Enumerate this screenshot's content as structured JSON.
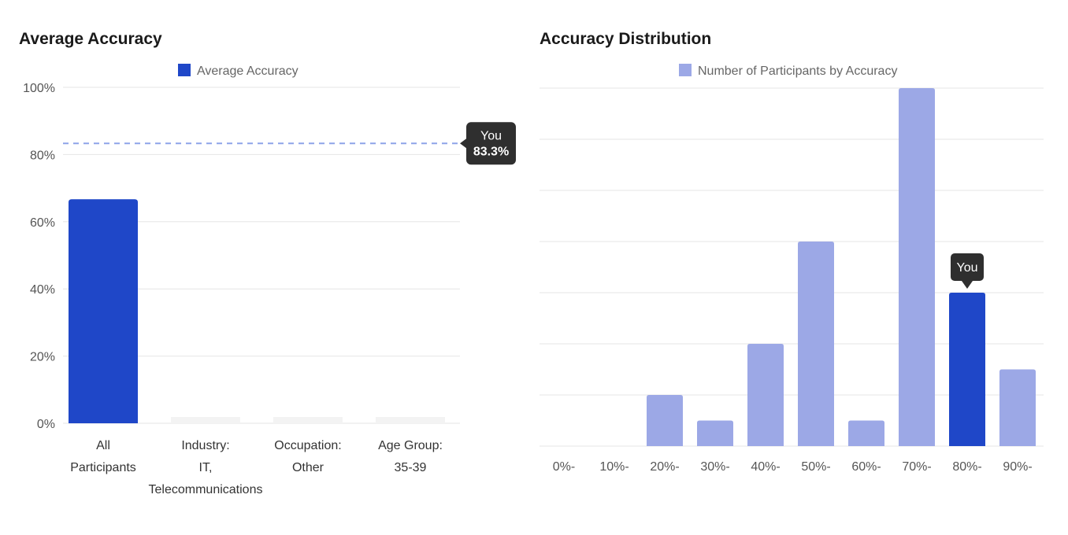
{
  "colors": {
    "primary": "#1f47c8",
    "light": "#9ca8e6",
    "empty_bar": "#f3f3f3",
    "grid": "#e6e6e6",
    "tooltip": "#2f2f2f",
    "reference_line": "#8ea3e8"
  },
  "chart_data": [
    {
      "type": "bar",
      "title": "Average Accuracy",
      "legend": {
        "label": "Average Accuracy",
        "position": "top"
      },
      "categories": [
        [
          "All",
          "Participants"
        ],
        [
          "Industry:",
          "IT,",
          "Telecommunications"
        ],
        [
          "Occupation:",
          "Other"
        ],
        [
          "Age Group:",
          "35-39"
        ]
      ],
      "values": [
        66.7,
        0,
        0,
        0
      ],
      "ylim": [
        0,
        100
      ],
      "yticks": [
        "0%",
        "20%",
        "40%",
        "60%",
        "80%",
        "100%"
      ],
      "ytick_values": [
        0,
        20,
        40,
        60,
        80,
        100
      ],
      "reference": {
        "value": 83.3,
        "label": "You",
        "value_label": "83.3%"
      },
      "grid": true
    },
    {
      "type": "bar",
      "title": "Accuracy Distribution",
      "legend": {
        "label": "Number of Participants by Accuracy",
        "position": "top"
      },
      "categories": [
        "0%-",
        "10%-",
        "20%-",
        "30%-",
        "40%-",
        "50%-",
        "60%-",
        "70%-",
        "80%-",
        "90%-"
      ],
      "values": [
        0,
        0,
        1,
        0.5,
        2,
        4,
        0.5,
        7,
        3,
        1.5
      ],
      "ylim": [
        0,
        7
      ],
      "highlight_index": 8,
      "highlight_label": "You",
      "grid": true
    }
  ]
}
